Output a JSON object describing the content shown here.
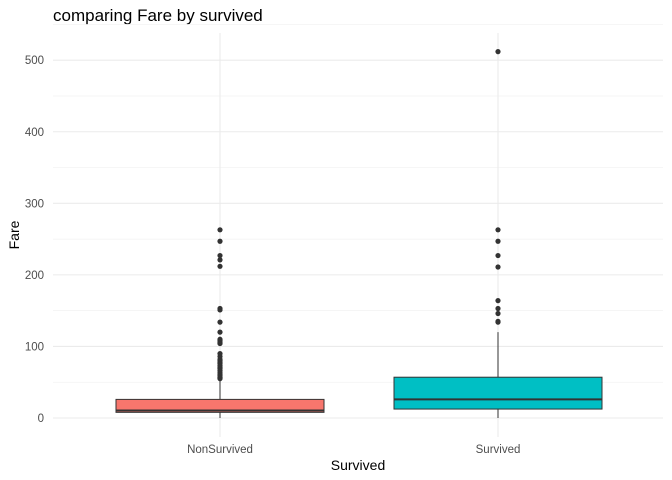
{
  "chart_data": {
    "type": "boxplot",
    "title": "comparing Fare by survived",
    "xlabel": "Survived",
    "ylabel": "Fare",
    "ylim": [
      -20,
      535
    ],
    "y_ticks": [
      0,
      100,
      200,
      300,
      400,
      500
    ],
    "grid": true,
    "categories": [
      "NonSurvived",
      "Survived"
    ],
    "series": [
      {
        "category": "NonSurvived",
        "color": "#F8766D",
        "min": 0,
        "q1": 7.9,
        "median": 10.5,
        "q3": 26,
        "max": 52,
        "outliers": [
          55,
          56,
          57,
          59,
          61,
          63,
          66,
          69,
          71,
          73,
          76,
          78,
          80,
          82,
          86,
          90,
          104,
          106,
          108,
          110,
          120,
          134,
          151,
          153,
          212,
          221,
          227,
          247,
          263
        ]
      },
      {
        "category": "Survived",
        "color": "#00BFC4",
        "min": 0,
        "q1": 12.5,
        "median": 26,
        "q3": 57,
        "max": 120,
        "outliers": [
          134,
          135,
          146,
          153,
          164,
          211,
          227,
          247,
          263,
          512
        ]
      }
    ]
  }
}
